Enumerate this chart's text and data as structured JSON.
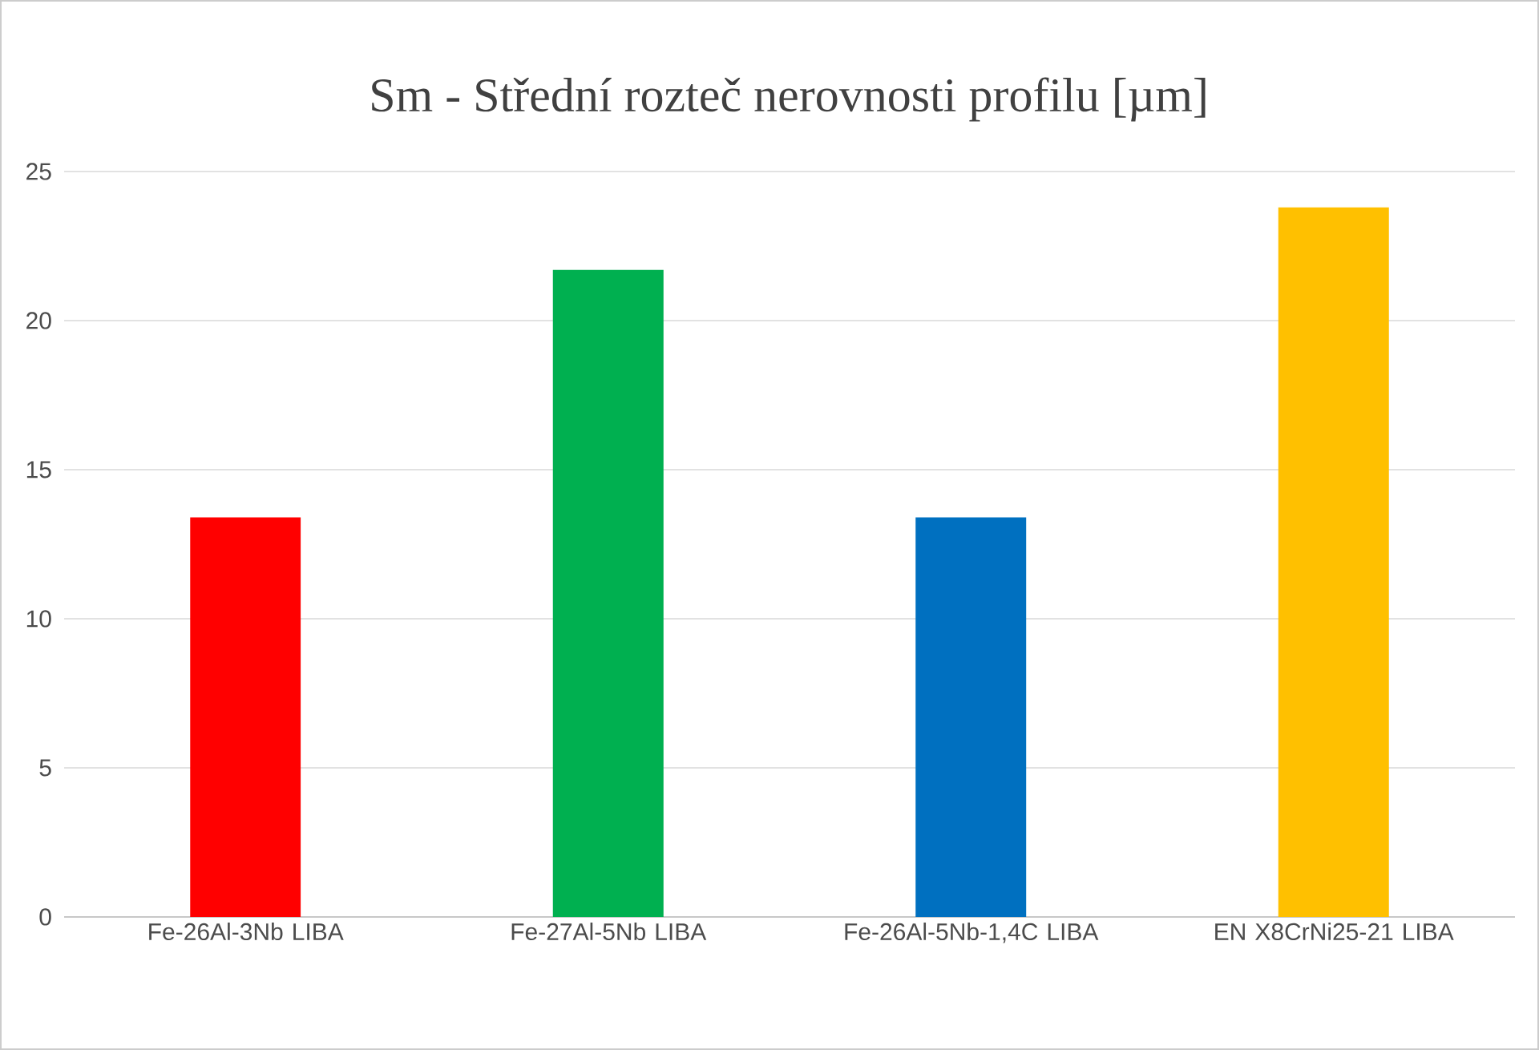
{
  "chart_data": {
    "type": "bar",
    "title": "Sm - Střední rozteč nerovnosti profilu [µm]",
    "categories": [
      "Fe-26Al-3Nb LIBA",
      "Fe-27Al-5Nb LIBA",
      "Fe-26Al-5Nb-1,4C LIBA",
      "EN X8CrNi25-21 LIBA"
    ],
    "values": [
      13.4,
      21.7,
      13.4,
      23.8
    ],
    "colors": [
      "#ff0000",
      "#00b050",
      "#0070c0",
      "#ffc000"
    ],
    "ylim": [
      0,
      25
    ],
    "yticks": [
      0,
      5,
      10,
      15,
      20,
      25
    ],
    "grid": "y"
  }
}
